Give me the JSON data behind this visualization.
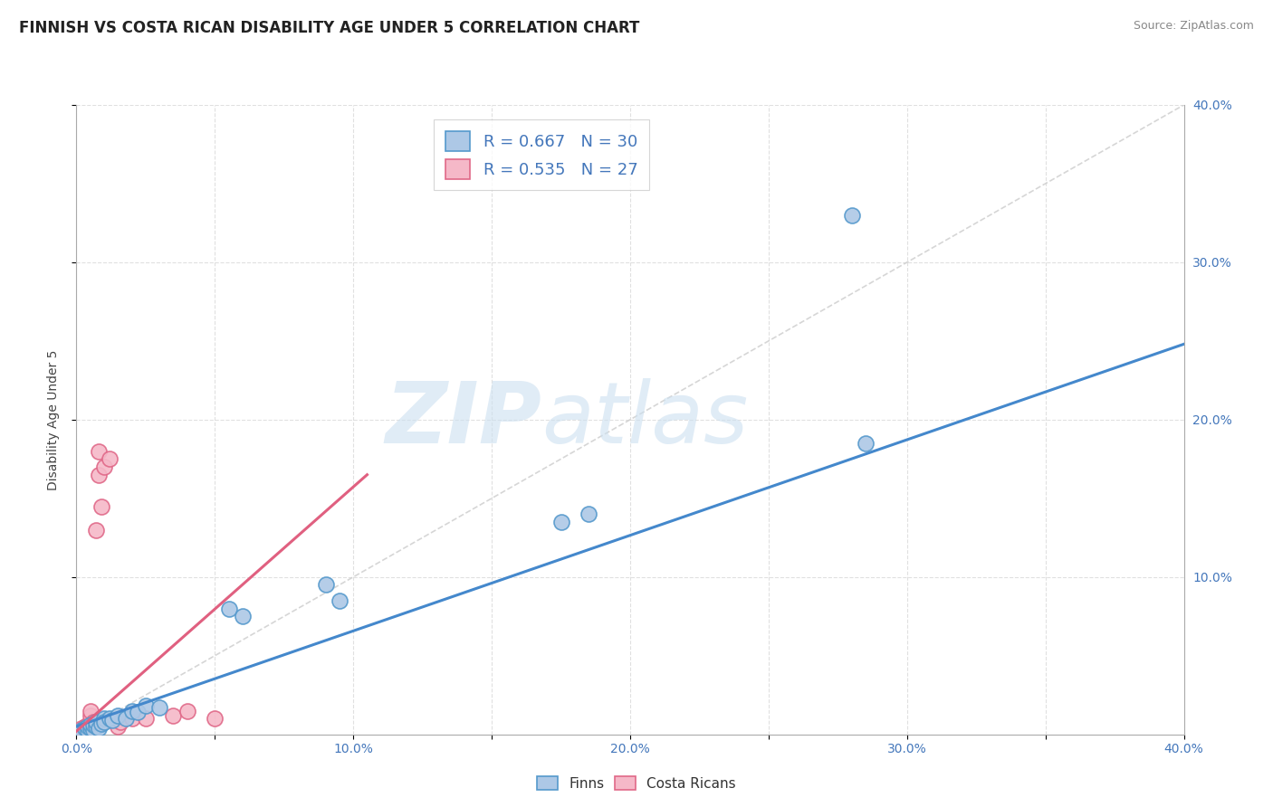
{
  "title": "FINNISH VS COSTA RICAN DISABILITY AGE UNDER 5 CORRELATION CHART",
  "source": "Source: ZipAtlas.com",
  "ylabel": "Disability Age Under 5",
  "xlim": [
    0.0,
    0.4
  ],
  "ylim": [
    0.0,
    0.4
  ],
  "xtick_labels": [
    "0.0%",
    "",
    "10.0%",
    "",
    "20.0%",
    "",
    "30.0%",
    "",
    "40.0%"
  ],
  "xtick_vals": [
    0.0,
    0.05,
    0.1,
    0.15,
    0.2,
    0.25,
    0.3,
    0.35,
    0.4
  ],
  "ytick_vals": [
    0.1,
    0.2,
    0.3,
    0.4
  ],
  "ytick_labels_right": [
    "10.0%",
    "20.0%",
    "30.0%",
    "40.0%"
  ],
  "legend_finns_label": "Finns",
  "legend_cr_label": "Costa Ricans",
  "r_finns": "0.667",
  "n_finns": "30",
  "r_cr": "0.535",
  "n_cr": "27",
  "finns_color": "#adc8e6",
  "cr_color": "#f5b8c8",
  "finns_edge_color": "#5599cc",
  "cr_edge_color": "#e06888",
  "finns_line_color": "#4488cc",
  "cr_line_color": "#e06080",
  "ref_line_color": "#cccccc",
  "watermark_zip": "ZIP",
  "watermark_atlas": "atlas",
  "title_fontsize": 12,
  "axis_label_fontsize": 10,
  "tick_fontsize": 10,
  "background_color": "#ffffff",
  "grid_color": "#dddddd",
  "finns_scatter_x": [
    0.002,
    0.003,
    0.004,
    0.004,
    0.005,
    0.005,
    0.006,
    0.006,
    0.007,
    0.007,
    0.008,
    0.009,
    0.01,
    0.01,
    0.012,
    0.013,
    0.015,
    0.018,
    0.02,
    0.022,
    0.025,
    0.03,
    0.055,
    0.06,
    0.09,
    0.095,
    0.175,
    0.185,
    0.285,
    0.28
  ],
  "finns_scatter_y": [
    0.003,
    0.004,
    0.002,
    0.005,
    0.004,
    0.006,
    0.003,
    0.006,
    0.005,
    0.008,
    0.004,
    0.007,
    0.01,
    0.008,
    0.01,
    0.009,
    0.012,
    0.01,
    0.015,
    0.014,
    0.018,
    0.017,
    0.08,
    0.075,
    0.095,
    0.085,
    0.135,
    0.14,
    0.185,
    0.33
  ],
  "cr_scatter_x": [
    0.002,
    0.002,
    0.003,
    0.003,
    0.004,
    0.004,
    0.005,
    0.005,
    0.005,
    0.005,
    0.005,
    0.006,
    0.006,
    0.006,
    0.007,
    0.008,
    0.008,
    0.009,
    0.01,
    0.012,
    0.015,
    0.016,
    0.02,
    0.025,
    0.035,
    0.04,
    0.05
  ],
  "cr_scatter_y": [
    0.003,
    0.004,
    0.003,
    0.005,
    0.004,
    0.006,
    0.003,
    0.004,
    0.005,
    0.012,
    0.015,
    0.004,
    0.006,
    0.008,
    0.13,
    0.165,
    0.18,
    0.145,
    0.17,
    0.175,
    0.005,
    0.008,
    0.01,
    0.01,
    0.012,
    0.015,
    0.01
  ],
  "finns_line_x": [
    0.0,
    0.4
  ],
  "finns_line_y": [
    0.005,
    0.248
  ],
  "cr_line_x": [
    0.0,
    0.105
  ],
  "cr_line_y": [
    0.002,
    0.165
  ]
}
